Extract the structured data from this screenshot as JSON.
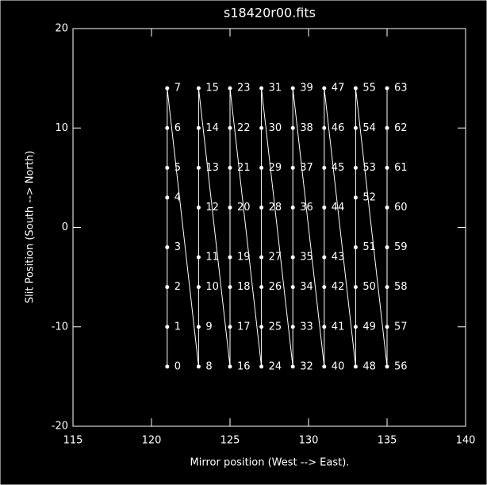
{
  "chart_data": {
    "type": "line",
    "title": "s18420r00.fits",
    "x_label": "Mirror position (West --> East).",
    "y_label": "Slit Position (South --> North)",
    "x": [
      121,
      121,
      121,
      121,
      121,
      121,
      121,
      121,
      123,
      123,
      123,
      123,
      123,
      123,
      123,
      123,
      125,
      125,
      125,
      125,
      125,
      125,
      125,
      125,
      127,
      127,
      127,
      127,
      127,
      127,
      127,
      127,
      129,
      129,
      129,
      129,
      129,
      129,
      129,
      129,
      131,
      131,
      131,
      131,
      131,
      131,
      131,
      131,
      133,
      133,
      133,
      133,
      133,
      133,
      133,
      133,
      135,
      135,
      135,
      135,
      135,
      135,
      135,
      135
    ],
    "values": [
      -14,
      -10,
      -6,
      -2,
      3,
      6,
      10,
      14,
      -14,
      -10,
      -6,
      -3,
      2,
      6,
      10,
      14,
      -14,
      -10,
      -6,
      -3,
      2,
      6,
      10,
      14,
      -14,
      -10,
      -6,
      -3,
      2,
      6,
      10,
      14,
      -14,
      -10,
      -6,
      -3,
      2,
      6,
      10,
      14,
      -14,
      -10,
      -6,
      -3,
      2,
      6,
      10,
      14,
      -14,
      -10,
      -6,
      -2,
      3,
      6,
      10,
      14,
      -14,
      -10,
      -6,
      -2,
      2,
      6,
      10,
      14
    ],
    "point_labels": [
      "0",
      "1",
      "2",
      "3",
      "4",
      "5",
      "6",
      "7",
      "8",
      "9",
      "10",
      "11",
      "12",
      "13",
      "14",
      "15",
      "16",
      "17",
      "18",
      "19",
      "20",
      "21",
      "22",
      "23",
      "24",
      "25",
      "26",
      "27",
      "28",
      "29",
      "30",
      "31",
      "32",
      "33",
      "34",
      "35",
      "36",
      "37",
      "38",
      "39",
      "40",
      "41",
      "42",
      "43",
      "44",
      "45",
      "46",
      "47",
      "48",
      "49",
      "50",
      "51",
      "52",
      "53",
      "54",
      "55",
      "56",
      "57",
      "58",
      "59",
      "60",
      "61",
      "62",
      "63"
    ],
    "color": "#ffffff",
    "xlim": [
      115,
      140
    ],
    "xticks": [
      115,
      120,
      125,
      130,
      135,
      140
    ],
    "ylim": [
      -20,
      20
    ],
    "yticks": [
      -20,
      -10,
      0,
      10,
      20
    ]
  }
}
